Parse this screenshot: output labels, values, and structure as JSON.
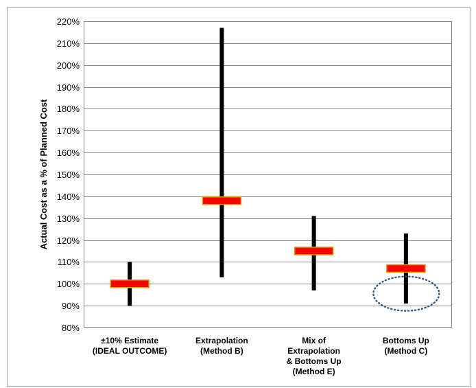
{
  "chart_data": {
    "type": "range",
    "title": "",
    "xlabel": "",
    "ylabel": "Actual Cost as a % of Planned Cost",
    "ylim": [
      0.8,
      2.2
    ],
    "ytick_step": 0.1,
    "y_tick_labels": [
      "80%",
      "90%",
      "100%",
      "110%",
      "120%",
      "130%",
      "140%",
      "150%",
      "160%",
      "170%",
      "180%",
      "190%",
      "200%",
      "210%",
      "220%"
    ],
    "grid": true,
    "legend": "none",
    "categories": [
      [
        "±10% Estimate",
        "(IDEAL OUTCOME)"
      ],
      [
        "Extrapolation",
        "(Method B)"
      ],
      [
        "Mix of",
        "Extrapolation",
        "& Bottoms Up",
        "(Method E)"
      ],
      [
        "Bottoms Up",
        "(Method C)"
      ]
    ],
    "series": [
      {
        "low": 0.9,
        "high": 1.1,
        "mid": 1.0
      },
      {
        "low": 1.03,
        "high": 2.17,
        "mid": 1.38
      },
      {
        "low": 0.97,
        "high": 1.31,
        "mid": 1.15
      },
      {
        "low": 0.91,
        "high": 1.23,
        "mid": 1.07
      }
    ],
    "annotation": {
      "type": "dotted-ellipse",
      "category_index": 3,
      "y_center": 0.955
    },
    "colors": {
      "range_bar": "#000000",
      "mid_marker_fill": "#ff0000",
      "mid_marker_stroke": "#d4a100",
      "grid": "#8c8c8c",
      "ellipse": "#2f5c8f",
      "frame": "#9aa9c4"
    }
  }
}
